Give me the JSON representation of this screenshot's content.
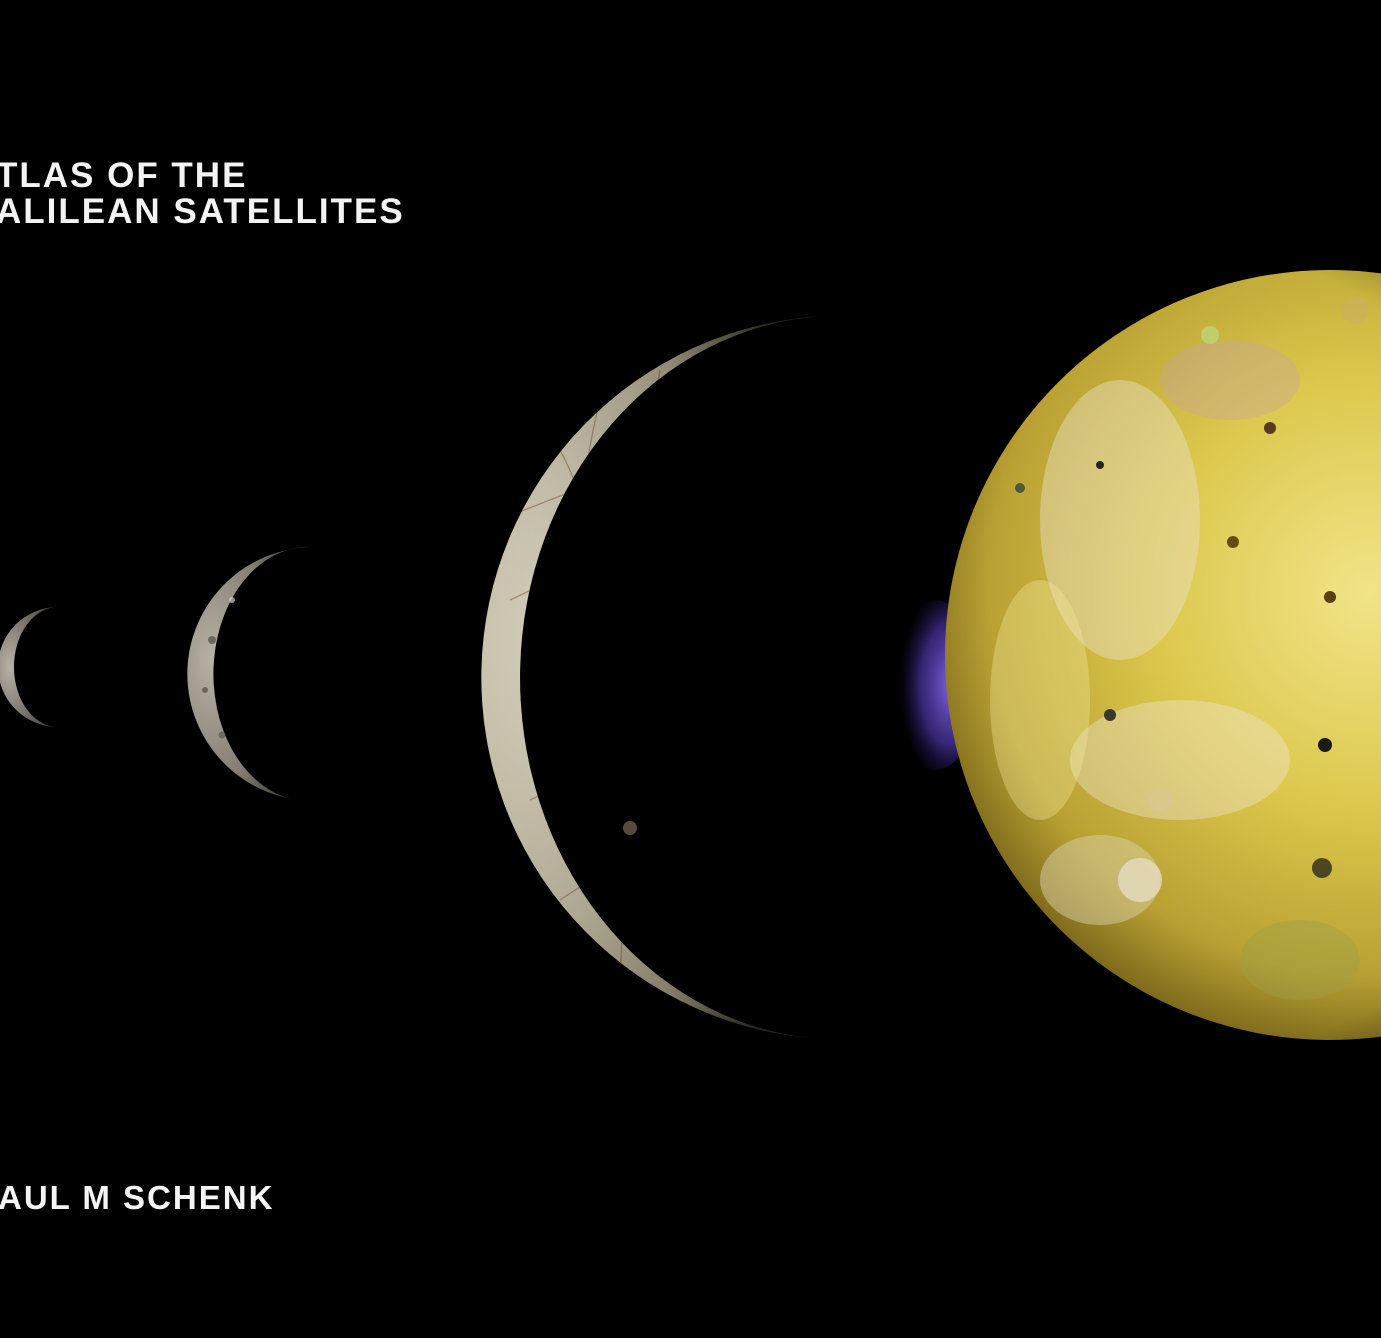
{
  "cover": {
    "title_line_1": "TLAS OF THE",
    "title_line_2": "ALILEAN SATELLITES",
    "author": "AUL M SCHENK"
  },
  "colors": {
    "background": "#000000",
    "text": "#f4f4f4",
    "io_yellow": "#d9c545",
    "europa_gray": "#c9c4b0",
    "ganymede_gray": "#8f8a80",
    "plume_violet": "#6a4fd0"
  }
}
